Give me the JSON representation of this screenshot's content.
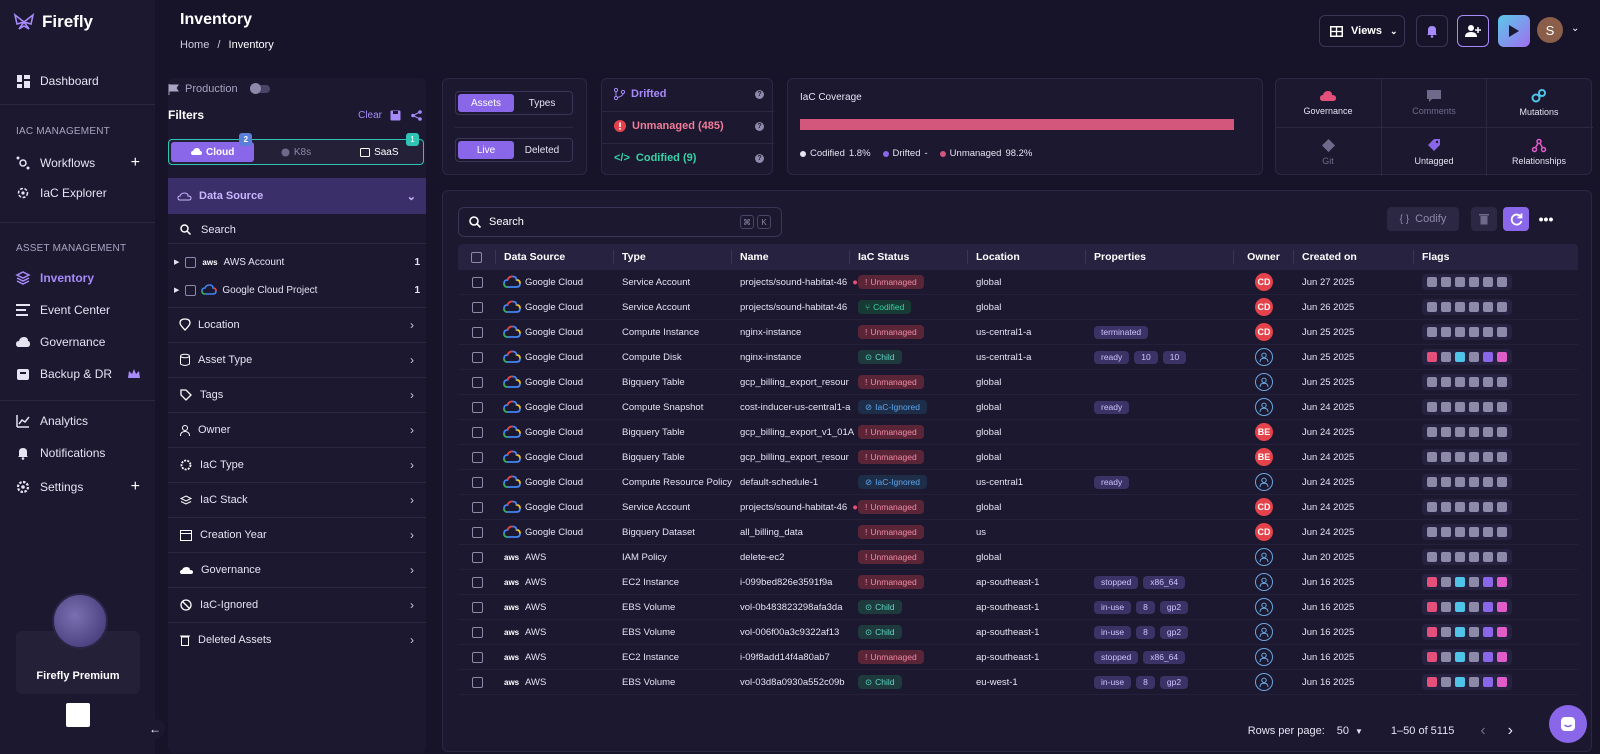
{
  "app": {
    "name": "Firefly",
    "premium_label": "Firefly Premium"
  },
  "sidebar": {
    "dashboard": "Dashboard",
    "iac_section": "IAC MANAGEMENT",
    "workflows": "Workflows",
    "iac_explorer": "IaC Explorer",
    "asset_section": "ASSET MANAGEMENT",
    "inventory": "Inventory",
    "event_center": "Event Center",
    "governance": "Governance",
    "backup": "Backup & DR",
    "analytics": "Analytics",
    "notifications": "Notifications",
    "settings": "Settings"
  },
  "header": {
    "title": "Inventory",
    "crumb_home": "Home",
    "crumb_sep": "/",
    "crumb_current": "Inventory",
    "views_label": "Views",
    "user_initial": "S"
  },
  "filters": {
    "production_label": "Production",
    "title": "Filters",
    "clear": "Clear",
    "providers": [
      {
        "label": "Cloud",
        "badge": "2"
      },
      {
        "label": "K8s"
      },
      {
        "label": "SaaS",
        "badge": "1"
      }
    ],
    "data_source": "Data Source",
    "search": "Search",
    "tree": [
      {
        "label": "AWS Account",
        "count": "1"
      },
      {
        "label": "Google Cloud Project",
        "count": "1"
      }
    ],
    "groups": [
      "Location",
      "Asset Type",
      "Tags",
      "Owner",
      "IaC Type",
      "IaC Stack",
      "Creation Year",
      "Governance",
      "IaC-Ignored",
      "Deleted Assets"
    ]
  },
  "toggles": {
    "assets": "Assets",
    "types": "Types",
    "live": "Live",
    "deleted": "Deleted"
  },
  "stats": {
    "drifted": "Drifted",
    "unmanaged": "Unmanaged (485)",
    "codified": "Codified (9)"
  },
  "coverage": {
    "title": "IaC Coverage",
    "legend": [
      {
        "label": "Codified",
        "value": "1.8%",
        "color": "#e6e3f2"
      },
      {
        "label": "Drifted",
        "value": "-",
        "color": "#8a66e8"
      },
      {
        "label": "Unmanaged",
        "value": "98.2%",
        "color": "#d3577c"
      }
    ]
  },
  "insights": [
    "Governance",
    "Comments",
    "Mutations",
    "Git",
    "Untagged",
    "Relationships"
  ],
  "table": {
    "search_placeholder": "Search",
    "kbd": [
      "⌘",
      "K"
    ],
    "codify": "Codify",
    "columns": [
      "Data Source",
      "Type",
      "Name",
      "IaC Status",
      "Location",
      "Properties",
      "Owner",
      "Created on",
      "Flags"
    ],
    "rows": [
      {
        "ds": "Google Cloud",
        "type": "Service Account",
        "name": "projects/sound-habitat-46",
        "status": "Unmanaged",
        "loc": "global",
        "props": [],
        "owner": "CD",
        "created": "Jun 27 2025"
      },
      {
        "ds": "Google Cloud",
        "type": "Service Account",
        "name": "projects/sound-habitat-46",
        "status": "Codified",
        "loc": "global",
        "props": [],
        "owner": "CD",
        "created": "Jun 26 2025"
      },
      {
        "ds": "Google Cloud",
        "type": "Compute Instance",
        "name": "nginx-instance",
        "status": "Unmanaged",
        "loc": "us-central1-a",
        "props": [
          "terminated"
        ],
        "owner": "CD",
        "created": "Jun 25 2025"
      },
      {
        "ds": "Google Cloud",
        "type": "Compute Disk",
        "name": "nginx-instance",
        "status": "Child",
        "loc": "us-central1-a",
        "props": [
          "ready",
          "10",
          "10"
        ],
        "owner": "",
        "created": "Jun 25 2025"
      },
      {
        "ds": "Google Cloud",
        "type": "Bigquery Table",
        "name": "gcp_billing_export_resour",
        "status": "Unmanaged",
        "loc": "global",
        "props": [],
        "owner": "",
        "created": "Jun 25 2025"
      },
      {
        "ds": "Google Cloud",
        "type": "Compute Snapshot",
        "name": "cost-inducer-us-central1-a",
        "status": "IaC-Ignored",
        "loc": "global",
        "props": [
          "ready"
        ],
        "owner": "",
        "created": "Jun 24 2025"
      },
      {
        "ds": "Google Cloud",
        "type": "Bigquery Table",
        "name": "gcp_billing_export_v1_01A",
        "status": "Unmanaged",
        "loc": "global",
        "props": [],
        "owner": "BE",
        "created": "Jun 24 2025"
      },
      {
        "ds": "Google Cloud",
        "type": "Bigquery Table",
        "name": "gcp_billing_export_resour",
        "status": "Unmanaged",
        "loc": "global",
        "props": [],
        "owner": "BE",
        "created": "Jun 24 2025"
      },
      {
        "ds": "Google Cloud",
        "type": "Compute Resource Policy",
        "name": "default-schedule-1",
        "status": "IaC-Ignored",
        "loc": "us-central1",
        "props": [
          "ready"
        ],
        "owner": "",
        "created": "Jun 24 2025"
      },
      {
        "ds": "Google Cloud",
        "type": "Service Account",
        "name": "projects/sound-habitat-46",
        "status": "Unmanaged",
        "loc": "global",
        "props": [],
        "owner": "CD",
        "created": "Jun 24 2025"
      },
      {
        "ds": "Google Cloud",
        "type": "Bigquery Dataset",
        "name": "all_billing_data",
        "status": "Unmanaged",
        "loc": "us",
        "props": [],
        "owner": "CD",
        "created": "Jun 24 2025"
      },
      {
        "ds": "AWS",
        "type": "IAM Policy",
        "name": "delete-ec2",
        "status": "Unmanaged",
        "loc": "global",
        "props": [],
        "owner": "",
        "created": "Jun 20 2025"
      },
      {
        "ds": "AWS",
        "type": "EC2 Instance",
        "name": "i-099bed826e3591f9a",
        "status": "Unmanaged",
        "loc": "ap-southeast-1",
        "props": [
          "stopped",
          "x86_64"
        ],
        "owner": "",
        "created": "Jun 16 2025"
      },
      {
        "ds": "AWS",
        "type": "EBS Volume",
        "name": "vol-0b483823298afa3da",
        "status": "Child",
        "loc": "ap-southeast-1",
        "props": [
          "in-use",
          "8",
          "gp2"
        ],
        "owner": "",
        "created": "Jun 16 2025"
      },
      {
        "ds": "AWS",
        "type": "EBS Volume",
        "name": "vol-006f00a3c9322af13",
        "status": "Child",
        "loc": "ap-southeast-1",
        "props": [
          "in-use",
          "8",
          "gp2"
        ],
        "owner": "",
        "created": "Jun 16 2025"
      },
      {
        "ds": "AWS",
        "type": "EC2 Instance",
        "name": "i-09f8add14f4a80ab7",
        "status": "Unmanaged",
        "loc": "ap-southeast-1",
        "props": [
          "stopped",
          "x86_64"
        ],
        "owner": "",
        "created": "Jun 16 2025"
      },
      {
        "ds": "AWS",
        "type": "EBS Volume",
        "name": "vol-03d8a0930a552c09b",
        "status": "Child",
        "loc": "eu-west-1",
        "props": [
          "in-use",
          "8",
          "gp2"
        ],
        "owner": "",
        "created": "Jun 16 2025"
      }
    ],
    "rows_per_page_label": "Rows per page:",
    "rows_per_page": "50",
    "range": "1–50 of 5115"
  },
  "colors": {
    "accent": "#8a66e8",
    "teal": "#2ec4b6",
    "danger": "#d3577c"
  }
}
